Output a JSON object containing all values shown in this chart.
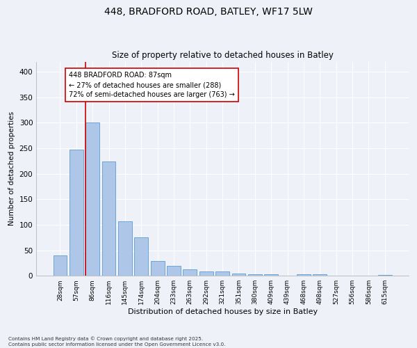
{
  "title_line1": "448, BRADFORD ROAD, BATLEY, WF17 5LW",
  "title_line2": "Size of property relative to detached houses in Batley",
  "xlabel": "Distribution of detached houses by size in Batley",
  "ylabel": "Number of detached properties",
  "categories": [
    "28sqm",
    "57sqm",
    "86sqm",
    "116sqm",
    "145sqm",
    "174sqm",
    "204sqm",
    "233sqm",
    "263sqm",
    "292sqm",
    "321sqm",
    "351sqm",
    "380sqm",
    "409sqm",
    "439sqm",
    "468sqm",
    "498sqm",
    "527sqm",
    "556sqm",
    "586sqm",
    "615sqm"
  ],
  "values": [
    40,
    248,
    301,
    224,
    107,
    75,
    29,
    19,
    12,
    9,
    8,
    4,
    3,
    3,
    0,
    3,
    3,
    0,
    0,
    0,
    1
  ],
  "bar_color": "#aec6e8",
  "bar_edge_color": "#5a9ed0",
  "highlight_index": 2,
  "vline_color": "#cc0000",
  "annotation_text": "448 BRADFORD ROAD: 87sqm\n← 27% of detached houses are smaller (288)\n72% of semi-detached houses are larger (763) →",
  "annotation_box_color": "#ffffff",
  "annotation_box_edge": "#cc0000",
  "ylim": [
    0,
    420
  ],
  "yticks": [
    0,
    50,
    100,
    150,
    200,
    250,
    300,
    350,
    400
  ],
  "background_color": "#eef2f8",
  "plot_background": "#eef2f8",
  "footer_line1": "Contains HM Land Registry data © Crown copyright and database right 2025.",
  "footer_line2": "Contains public sector information licensed under the Open Government Licence v3.0.",
  "figsize": [
    6.0,
    5.0
  ],
  "dpi": 100
}
